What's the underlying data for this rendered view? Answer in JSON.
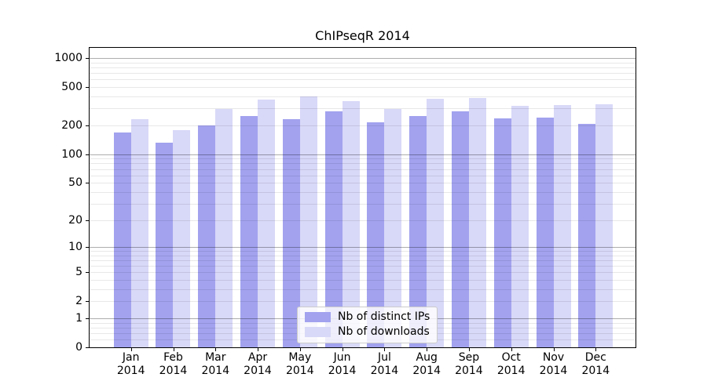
{
  "chart_data": {
    "type": "bar",
    "title": "ChIPseqR 2014",
    "categories": [
      "Jan",
      "Feb",
      "Mar",
      "Apr",
      "May",
      "Jun",
      "Jul",
      "Aug",
      "Sep",
      "Oct",
      "Nov",
      "Dec"
    ],
    "category_year": "2014",
    "series": [
      {
        "name": "Nb of distinct IPs",
        "color": "#a2a2ef",
        "values": [
          168,
          133,
          201,
          252,
          233,
          279,
          215,
          249,
          279,
          235,
          241,
          207
        ]
      },
      {
        "name": "Nb of downloads",
        "color": "#d8d8f8",
        "values": [
          232,
          178,
          295,
          371,
          400,
          361,
          296,
          380,
          385,
          322,
          326,
          332
        ]
      }
    ],
    "y_axis": {
      "scale": "log1p",
      "tick_values": [
        1000,
        500,
        200,
        100,
        50,
        20,
        10,
        5,
        2,
        1,
        0
      ],
      "max": 1281,
      "major_grid_values": [
        1,
        10,
        100,
        1000
      ],
      "minor_grid_values": [
        0.2,
        0.4,
        0.6,
        0.8,
        2,
        3,
        4,
        5,
        6,
        7,
        8,
        9,
        20,
        30,
        40,
        50,
        60,
        70,
        80,
        90,
        200,
        300,
        400,
        500,
        600,
        700,
        800,
        900
      ],
      "major_grid_color": "rgba(0,0,0,0.32)",
      "minor_grid_color": "rgba(0,0,0,0.09)"
    },
    "legend": {
      "position": "lower center"
    },
    "grid": true,
    "background": "#ffffff",
    "spine_color": "#000000"
  }
}
